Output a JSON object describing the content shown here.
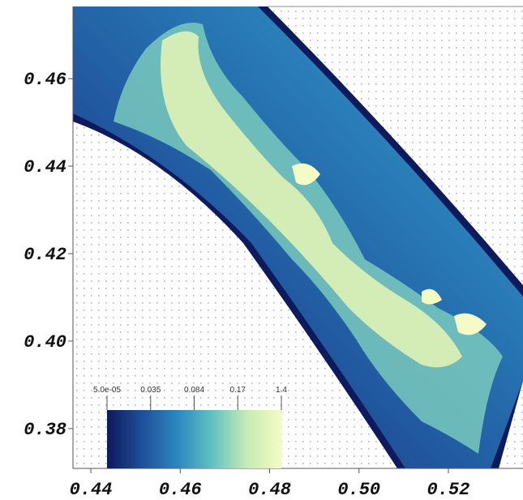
{
  "chart_data": {
    "type": "field",
    "xlim": [
      0.436,
      0.5367
    ],
    "ylim": [
      0.3709,
      0.4765
    ],
    "xticks": [
      0.44,
      0.46,
      0.48,
      {
        "value": 0.5,
        "label": "0.50"
      },
      0.52
    ],
    "yticks": [
      0.46,
      0.44,
      0.42,
      {
        "value": 0.4,
        "label": "0.40"
      },
      0.38
    ],
    "colorbar": {
      "ticks": [
        {
          "value": 5e-05,
          "label": "5.0e-05"
        },
        0.035,
        0.084,
        0.17,
        1.4
      ],
      "colors": [
        "#0d1a5c",
        "#1f4f9a",
        "#2b86bd",
        "#5fc1c0",
        "#c6ebb4",
        "#f4fbc4"
      ]
    }
  }
}
